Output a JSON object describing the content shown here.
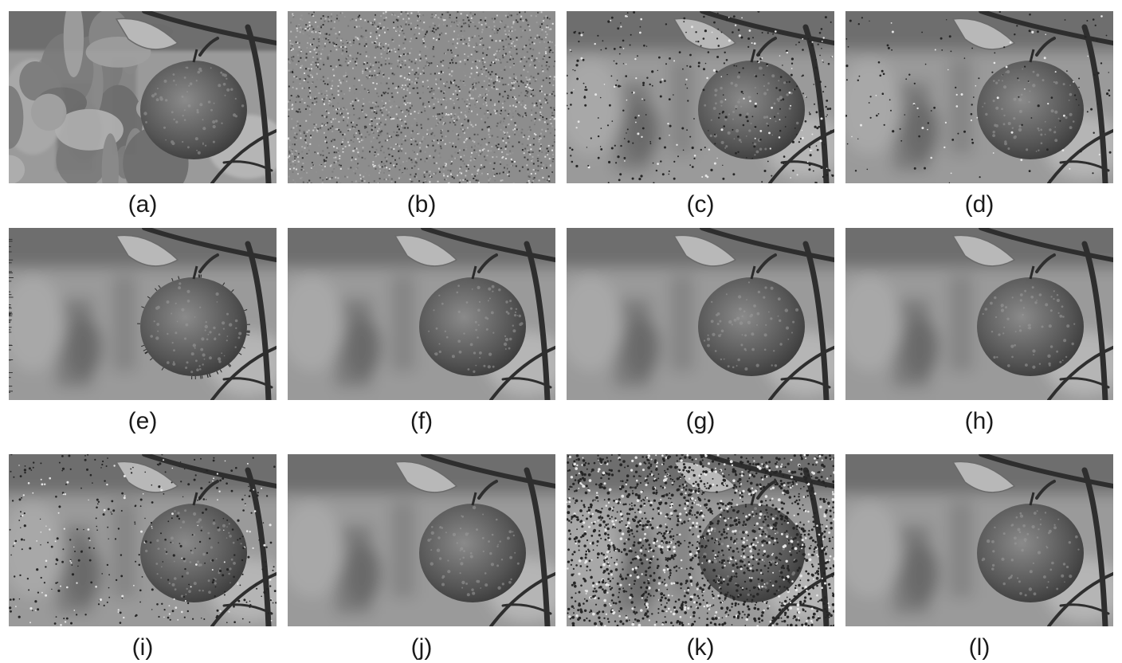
{
  "figure": {
    "panels": [
      {
        "label": "(a)",
        "variant": "posterized"
      },
      {
        "label": "(b)",
        "variant": "noise"
      },
      {
        "label": "(c)",
        "variant": "speckled"
      },
      {
        "label": "(d)",
        "variant": "light-speckle"
      },
      {
        "label": "(e)",
        "variant": "edge-artifacts"
      },
      {
        "label": "(f)",
        "variant": "clean"
      },
      {
        "label": "(g)",
        "variant": "clean"
      },
      {
        "label": "(h)",
        "variant": "clean"
      },
      {
        "label": "(i)",
        "variant": "speckled"
      },
      {
        "label": "(j)",
        "variant": "clean"
      },
      {
        "label": "(k)",
        "variant": "heavy-noise"
      },
      {
        "label": "(l)",
        "variant": "clean"
      }
    ]
  }
}
